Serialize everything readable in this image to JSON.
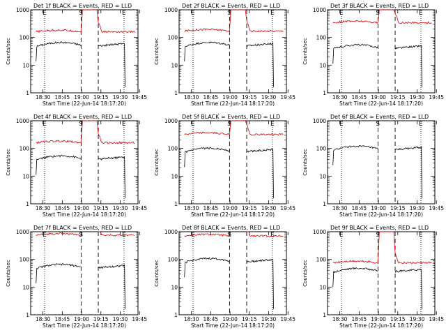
{
  "chart_data": [
    {
      "type": "line",
      "title": "Det 1f BLACK = Events, RED = LLD",
      "xlabel": "Start Time (22-Jun-14 18:17:20)",
      "ylabel": "Counts/sec",
      "x_ticks": [
        "18:30",
        "18:45",
        "19:00",
        "19:15",
        "19:30",
        "19:45"
      ],
      "y_ticks": [
        "1",
        "10",
        "100",
        "1000"
      ],
      "ylim": [
        1,
        1000
      ],
      "y_scale": "log",
      "markers": [
        {
          "label": "E",
          "style": "dotted"
        },
        {
          "label": "S",
          "style": "dashed"
        },
        {
          "label": "",
          "style": "dashed"
        },
        {
          "label": "E",
          "style": "dotted"
        }
      ],
      "series": [
        {
          "color": "#000000",
          "level": 55
        },
        {
          "color": "#d40000",
          "level": 160
        }
      ]
    },
    {
      "type": "line",
      "title": "Det 2f BLACK = Events, RED = LLD",
      "xlabel": "Start Time (22-Jun-14 18:17:20)",
      "ylabel": "Counts/sec",
      "x_ticks": [
        "18:30",
        "18:45",
        "19:00",
        "19:15",
        "19:30",
        "19:45"
      ],
      "y_ticks": [
        "1",
        "10",
        "100",
        "1000"
      ],
      "ylim": [
        1,
        1000
      ],
      "y_scale": "log",
      "markers": [
        {
          "label": "E",
          "style": "dotted"
        },
        {
          "label": "S",
          "style": "dashed"
        },
        {
          "label": "",
          "style": "dashed"
        },
        {
          "label": "E",
          "style": "dotted"
        }
      ],
      "series": [
        {
          "color": "#000000",
          "level": 55
        },
        {
          "color": "#d40000",
          "level": 170
        }
      ]
    },
    {
      "type": "line",
      "title": "Det 3f BLACK = Events, RED = LLD",
      "xlabel": "Start Time (22-Jun-14 18:17:20)",
      "ylabel": "Counts/sec",
      "x_ticks": [
        "18:30",
        "18:45",
        "19:00",
        "19:15",
        "19:30",
        "19:45"
      ],
      "y_ticks": [
        "1",
        "10",
        "100",
        "1000"
      ],
      "ylim": [
        1,
        1000
      ],
      "y_scale": "log",
      "markers": [
        {
          "label": "E",
          "style": "dotted"
        },
        {
          "label": "S",
          "style": "dashed"
        },
        {
          "label": "",
          "style": "dashed"
        },
        {
          "label": "E",
          "style": "dotted"
        }
      ],
      "series": [
        {
          "color": "#000000",
          "level": 45
        },
        {
          "color": "#d40000",
          "level": 340
        }
      ]
    },
    {
      "type": "line",
      "title": "Det 4f BLACK = Events, RED = LLD",
      "xlabel": "Start Time (22-Jun-14 18:17:20)",
      "ylabel": "Counts/sec",
      "x_ticks": [
        "18:30",
        "18:45",
        "19:00",
        "19:15",
        "19:30",
        "19:45"
      ],
      "y_ticks": [
        "1",
        "10",
        "100",
        "1000"
      ],
      "ylim": [
        1,
        1000
      ],
      "y_scale": "log",
      "markers": [
        {
          "label": "E",
          "style": "dotted"
        },
        {
          "label": "S",
          "style": "dashed"
        },
        {
          "label": "",
          "style": "dashed"
        },
        {
          "label": "E",
          "style": "dotted"
        }
      ],
      "series": [
        {
          "color": "#000000",
          "level": 45
        },
        {
          "color": "#d40000",
          "level": 160
        }
      ]
    },
    {
      "type": "line",
      "title": "Det 5f BLACK = Events, RED = LLD",
      "xlabel": "Start Time (22-Jun-14 18:17:20)",
      "ylabel": "Counts/sec",
      "x_ticks": [
        "18:30",
        "18:45",
        "19:00",
        "19:15",
        "19:30",
        "19:45"
      ],
      "y_ticks": [
        "1",
        "10",
        "100",
        "1000"
      ],
      "ylim": [
        1,
        1000
      ],
      "y_scale": "log",
      "markers": [
        {
          "label": "E",
          "style": "dotted"
        },
        {
          "label": "S",
          "style": "dashed"
        },
        {
          "label": "",
          "style": "dashed"
        },
        {
          "label": "E",
          "style": "dotted"
        }
      ],
      "series": [
        {
          "color": "#000000",
          "level": 85
        },
        {
          "color": "#d40000",
          "level": 320
        }
      ]
    },
    {
      "type": "line",
      "title": "Det 6f BLACK = Events, RED = LLD",
      "xlabel": "Start Time (22-Jun-14 18:17:20)",
      "ylabel": "Counts/sec",
      "x_ticks": [
        "18:30",
        "18:45",
        "19:00",
        "19:15",
        "19:30",
        "19:45"
      ],
      "y_ticks": [
        "1",
        "10",
        "100",
        "1000"
      ],
      "ylim": [
        1,
        1000
      ],
      "y_scale": "log",
      "markers": [
        {
          "label": "E",
          "style": "dotted"
        },
        {
          "label": "S",
          "style": "dashed"
        },
        {
          "label": "",
          "style": "dashed"
        },
        {
          "label": "E",
          "style": "dotted"
        }
      ],
      "series": [
        {
          "color": "#000000",
          "level": 100
        }
      ]
    },
    {
      "type": "line",
      "title": "Det 7f BLACK = Events, RED = LLD",
      "xlabel": "Start Time (22-Jun-14 18:17:20)",
      "ylabel": "Counts/sec",
      "x_ticks": [
        "18:30",
        "18:45",
        "19:00",
        "19:15",
        "19:30",
        "19:45"
      ],
      "y_ticks": [
        "1",
        "10",
        "100",
        "1000"
      ],
      "ylim": [
        1,
        1000
      ],
      "y_scale": "log",
      "markers": [
        {
          "label": "E",
          "style": "dotted"
        },
        {
          "label": "S",
          "style": "dashed"
        },
        {
          "label": "",
          "style": "dashed"
        },
        {
          "label": "E",
          "style": "dotted"
        }
      ],
      "series": [
        {
          "color": "#000000",
          "level": 55
        },
        {
          "color": "#d40000",
          "level": 750
        }
      ]
    },
    {
      "type": "line",
      "title": "Det 8f BLACK = Events, RED = LLD",
      "xlabel": "Start Time (22-Jun-14 18:17:20)",
      "ylabel": "Counts/sec",
      "x_ticks": [
        "18:30",
        "18:45",
        "19:00",
        "19:15",
        "19:30",
        "19:45"
      ],
      "y_ticks": [
        "1",
        "10",
        "100",
        "1000"
      ],
      "ylim": [
        1,
        1000
      ],
      "y_scale": "log",
      "markers": [
        {
          "label": "E",
          "style": "dotted"
        },
        {
          "label": "S",
          "style": "dashed"
        },
        {
          "label": "",
          "style": "dashed"
        },
        {
          "label": "E",
          "style": "dotted"
        }
      ],
      "series": [
        {
          "color": "#000000",
          "level": 90
        },
        {
          "color": "#d40000",
          "level": 700
        }
      ]
    },
    {
      "type": "line",
      "title": "Det 9f BLACK = Events, RED = LLD",
      "xlabel": "Start Time (22-Jun-14 18:17:20)",
      "ylabel": "Counts/sec",
      "x_ticks": [
        "18:30",
        "18:45",
        "19:00",
        "19:15",
        "19:30",
        "19:45"
      ],
      "y_ticks": [
        "1",
        "10",
        "100",
        "1000"
      ],
      "ylim": [
        1,
        1000
      ],
      "y_scale": "log",
      "markers": [
        {
          "label": "E",
          "style": "dotted"
        },
        {
          "label": "S",
          "style": "dashed"
        },
        {
          "label": "",
          "style": "dashed"
        },
        {
          "label": "E",
          "style": "dotted"
        }
      ],
      "series": [
        {
          "color": "#000000",
          "level": 40
        },
        {
          "color": "#d40000",
          "level": 75
        }
      ]
    }
  ]
}
